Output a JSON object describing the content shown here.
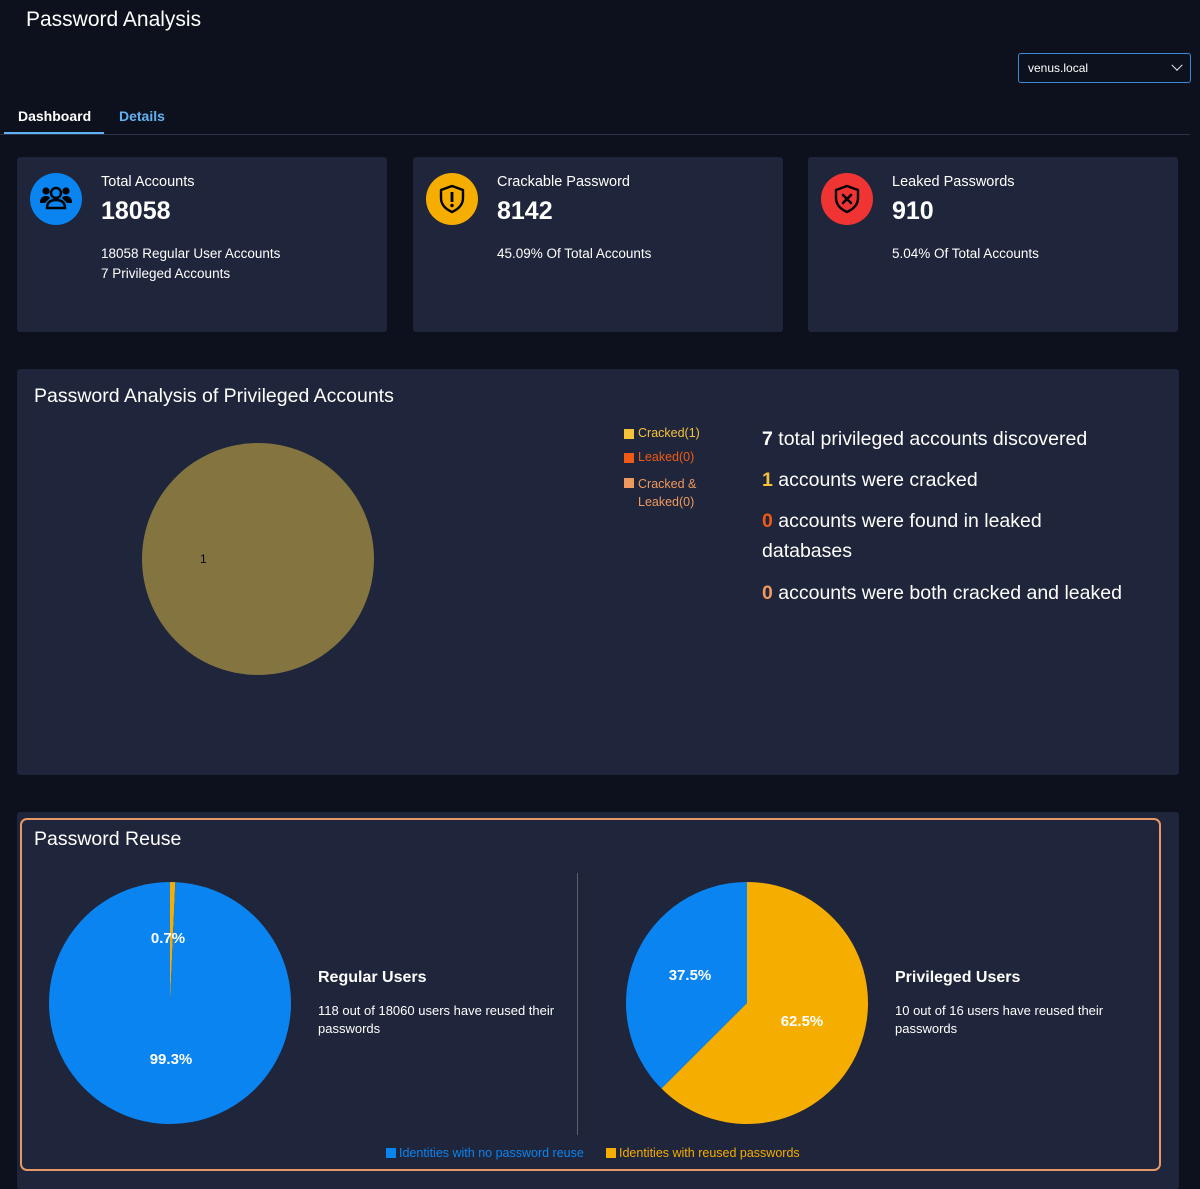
{
  "header": {
    "title": "Password Analysis"
  },
  "domain_select": {
    "value": "venus.local"
  },
  "tabs": [
    {
      "label": "Dashboard",
      "active": true
    },
    {
      "label": "Details",
      "active": false
    }
  ],
  "cards": [
    {
      "label": "Total Accounts",
      "value": "18058",
      "lines": [
        "18058 Regular User Accounts",
        "7 Privileged Accounts"
      ],
      "icon": "users-icon",
      "color": "#0a84f0"
    },
    {
      "label": "Crackable Password",
      "value": "8142",
      "lines": [
        "45.09% Of Total Accounts"
      ],
      "icon": "shield-warning-icon",
      "color": "#f5ad00"
    },
    {
      "label": "Leaked Passwords",
      "value": "910",
      "lines": [
        "5.04% Of Total Accounts"
      ],
      "icon": "shield-x-icon",
      "color": "#f03434"
    }
  ],
  "privileged": {
    "title": "Password Analysis of Privileged Accounts",
    "legend": [
      {
        "label": "Cracked(1)",
        "color": "#f5c23a"
      },
      {
        "label": "Leaked(0)",
        "color": "#f05a14"
      },
      {
        "label": "Cracked & Leaked(0)",
        "color": "#f0995e"
      }
    ],
    "pie_label": "1",
    "stats": [
      {
        "num": "7",
        "num_color": "#ffffff",
        "text": " total privileged accounts discovered"
      },
      {
        "num": "1",
        "num_color": "#f5c23a",
        "text": " accounts were cracked"
      },
      {
        "num": "0",
        "num_color": "#f05a14",
        "text": " accounts were found in leaked databases"
      },
      {
        "num": "0",
        "num_color": "#f0995e",
        "text": " accounts were both cracked and leaked"
      }
    ]
  },
  "reuse": {
    "title": "Password Reuse",
    "regular": {
      "title": "Regular Users",
      "desc": "118 out of 18060 users have reused their passwords"
    },
    "privileged_users": {
      "title": "Privileged Users",
      "desc": "10 out of 16 users have reused their passwords"
    },
    "legend": [
      {
        "label": "Identities with no password reuse",
        "color": "#0a84f0"
      },
      {
        "label": "Identities with reused passwords",
        "color": "#f5ad00"
      }
    ]
  },
  "chart_data": [
    {
      "type": "pie",
      "title": "Password Analysis of Privileged Accounts",
      "categories": [
        "Cracked",
        "Leaked",
        "Cracked & Leaked"
      ],
      "values": [
        1,
        0,
        0
      ],
      "colors": [
        "#837440",
        "#f05a14",
        "#f0995e"
      ],
      "data_labels": [
        "1",
        "",
        ""
      ]
    },
    {
      "type": "pie",
      "title": "Regular Users",
      "categories": [
        "Identities with no password reuse",
        "Identities with reused passwords"
      ],
      "values": [
        99.3,
        0.7
      ],
      "data_labels": [
        "99.3%",
        "0.7%"
      ],
      "colors": [
        "#0a84f0",
        "#f5ad00"
      ]
    },
    {
      "type": "pie",
      "title": "Privileged Users",
      "categories": [
        "Identities with no password reuse",
        "Identities with reused passwords"
      ],
      "values": [
        37.5,
        62.5
      ],
      "data_labels": [
        "37.5%",
        "62.5%"
      ],
      "colors": [
        "#0a84f0",
        "#f5ad00"
      ]
    }
  ]
}
